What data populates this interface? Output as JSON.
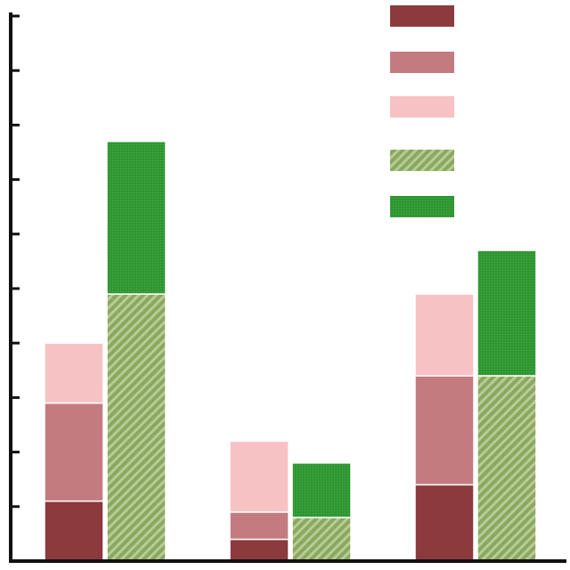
{
  "chart_data": {
    "type": "bar",
    "stacked": true,
    "title": "",
    "xlabel": "",
    "ylabel": "",
    "ylim": [
      0,
      10
    ],
    "grid": false,
    "legend_placement": "top-right",
    "groups": [
      {
        "stacks": [
          {
            "segments": [
              1.1,
              1.8,
              1.1
            ]
          },
          {
            "segments": [
              4.9,
              2.8
            ]
          }
        ]
      },
      {
        "stacks": [
          {
            "segments": [
              0.4,
              0.5,
              1.3
            ]
          },
          {
            "segments": [
              0.8,
              1.0
            ]
          }
        ]
      },
      {
        "stacks": [
          {
            "segments": [
              1.4,
              2.0,
              1.5
            ]
          },
          {
            "segments": [
              3.4,
              2.3
            ]
          }
        ]
      }
    ],
    "segment_styles": [
      {
        "fill": "#8b3a3e",
        "pattern": "none"
      },
      {
        "fill": "#c47b80",
        "pattern": "none"
      },
      {
        "fill": "#f7c2c4",
        "pattern": "none"
      },
      {
        "fill": "#8aa85e",
        "pattern": "hatch"
      },
      {
        "fill": "#2f9632",
        "pattern": "dots"
      }
    ],
    "stack_style_map": [
      [
        0,
        1,
        2
      ],
      [
        3,
        4
      ]
    ]
  }
}
